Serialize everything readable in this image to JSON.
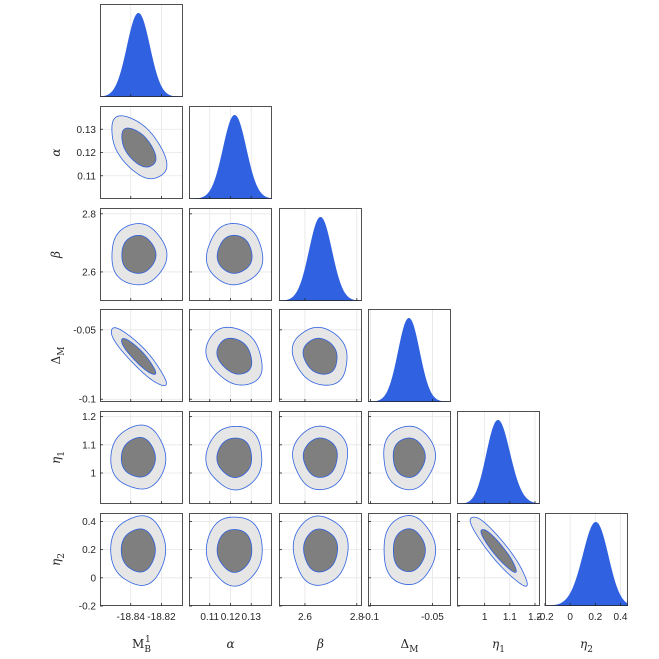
{
  "chart_data": {
    "type": "corner",
    "title": "",
    "parameters": [
      {
        "id": "MB1",
        "label_main": "M",
        "label_sup": "1",
        "label_sub": "B",
        "italic": false,
        "range": [
          -18.86,
          -18.806
        ],
        "ticks": [
          -18.84,
          -18.82
        ],
        "tick_labels": [
          "-18.84",
          "-18.82"
        ],
        "marginal": {
          "mean": -18.835,
          "sd": 0.0073,
          "skew": 0
        }
      },
      {
        "id": "alpha",
        "label_main": "α",
        "label_sup": "",
        "label_sub": "",
        "italic": true,
        "range": [
          0.1,
          0.14
        ],
        "ticks": [
          0.11,
          0.12,
          0.13
        ],
        "tick_labels": [
          "0.11",
          "0.12",
          "0.13"
        ],
        "marginal": {
          "mean": 0.122,
          "sd": 0.0055,
          "skew": 0
        }
      },
      {
        "id": "beta",
        "label_main": "β",
        "label_sup": "",
        "label_sub": "",
        "italic": true,
        "range": [
          2.5,
          2.82
        ],
        "ticks": [
          2.6,
          2.8
        ],
        "tick_labels": [
          "2.6",
          "2.8"
        ],
        "marginal": {
          "mean": 2.66,
          "sd": 0.043,
          "skew": 0
        }
      },
      {
        "id": "DeltaM",
        "label_main": "Δ",
        "label_sup": "",
        "label_sub": "M",
        "italic": false,
        "range": [
          -0.102,
          -0.035
        ],
        "ticks": [
          -0.1,
          -0.05
        ],
        "tick_labels": [
          "-0.1",
          "-0.05"
        ],
        "marginal": {
          "mean": -0.069,
          "sd": 0.0085,
          "skew": 0
        }
      },
      {
        "id": "eta1",
        "label_main": "η",
        "label_sup": "",
        "label_sub": "1",
        "italic": true,
        "range": [
          0.89,
          1.22
        ],
        "ticks": [
          1.0,
          1.1,
          1.2
        ],
        "tick_labels": [
          "1",
          "1.1",
          "1.2"
        ],
        "marginal": {
          "mean": 1.055,
          "sd": 0.046,
          "skew": 0.3
        }
      },
      {
        "id": "eta2",
        "label_main": "η",
        "label_sup": "",
        "label_sub": "2",
        "italic": true,
        "range": [
          -0.2,
          0.46
        ],
        "ticks": [
          -0.2,
          0,
          0.2,
          0.4
        ],
        "tick_labels": [
          "-0.2",
          "0",
          "0.2",
          "0.4"
        ],
        "marginal": {
          "mean": 0.195,
          "sd": 0.1,
          "skew": -0.25
        }
      }
    ],
    "pairs": [
      {
        "x": "MB1",
        "y": "alpha",
        "corr": -0.55
      },
      {
        "x": "MB1",
        "y": "beta",
        "corr": 0.0
      },
      {
        "x": "alpha",
        "y": "beta",
        "corr": 0.0
      },
      {
        "x": "MB1",
        "y": "DeltaM",
        "corr": -0.9
      },
      {
        "x": "alpha",
        "y": "DeltaM",
        "corr": -0.25
      },
      {
        "x": "beta",
        "y": "DeltaM",
        "corr": -0.15
      },
      {
        "x": "MB1",
        "y": "eta1",
        "corr": 0.0
      },
      {
        "x": "alpha",
        "y": "eta1",
        "corr": 0.0
      },
      {
        "x": "beta",
        "y": "eta1",
        "corr": 0.0
      },
      {
        "x": "DeltaM",
        "y": "eta1",
        "corr": 0.0
      },
      {
        "x": "MB1",
        "y": "eta2",
        "corr": 0.0
      },
      {
        "x": "alpha",
        "y": "eta2",
        "corr": 0.0
      },
      {
        "x": "beta",
        "y": "eta2",
        "corr": 0.0
      },
      {
        "x": "DeltaM",
        "y": "eta2",
        "corr": 0.0
      },
      {
        "x": "eta1",
        "y": "eta2",
        "corr": -0.92
      }
    ],
    "contour_levels": [
      "68%",
      "95%"
    ],
    "colors": {
      "marginal_fill": "#2f61e0",
      "inner_contour_fill": "#7f7f7f",
      "outer_contour_fill": "#e6e6e6",
      "contour_edge": "#2f61e0",
      "axes": "#262626",
      "grid": "#e6e6e6"
    },
    "grid": true,
    "legend": "none"
  }
}
